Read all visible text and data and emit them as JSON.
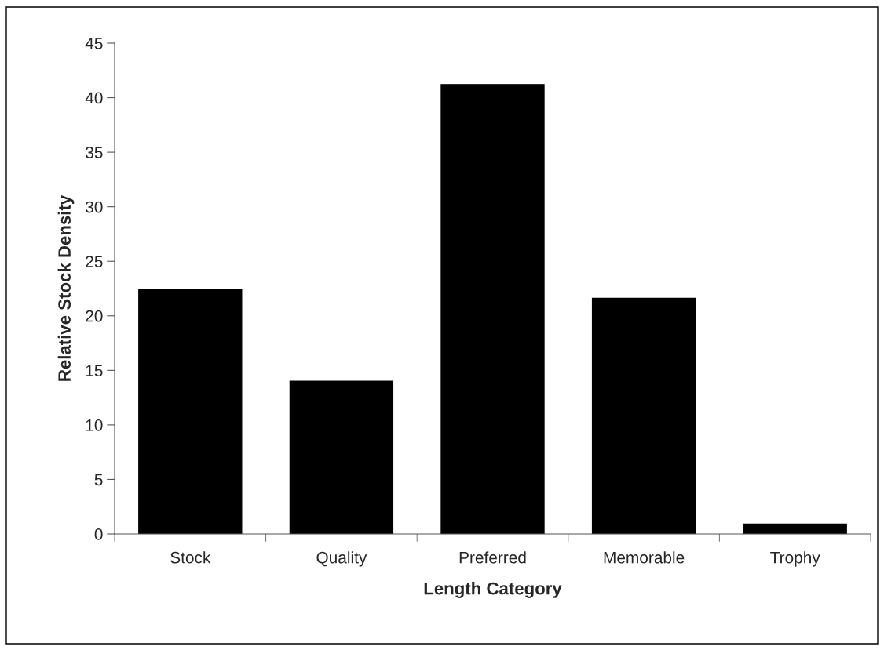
{
  "chart_data": {
    "type": "bar",
    "xlabel": "Length Category",
    "ylabel": "Relative Stock Density",
    "categories": [
      "Stock",
      "Quality",
      "Preferred",
      "Memorable",
      "Trophy"
    ],
    "values": [
      22.4,
      14.0,
      41.2,
      21.6,
      0.9
    ],
    "color": "#000000",
    "ylim": [
      0,
      45
    ],
    "yticks": [
      0,
      5,
      10,
      15,
      20,
      25,
      30,
      35,
      40,
      45
    ],
    "grid": false
  }
}
